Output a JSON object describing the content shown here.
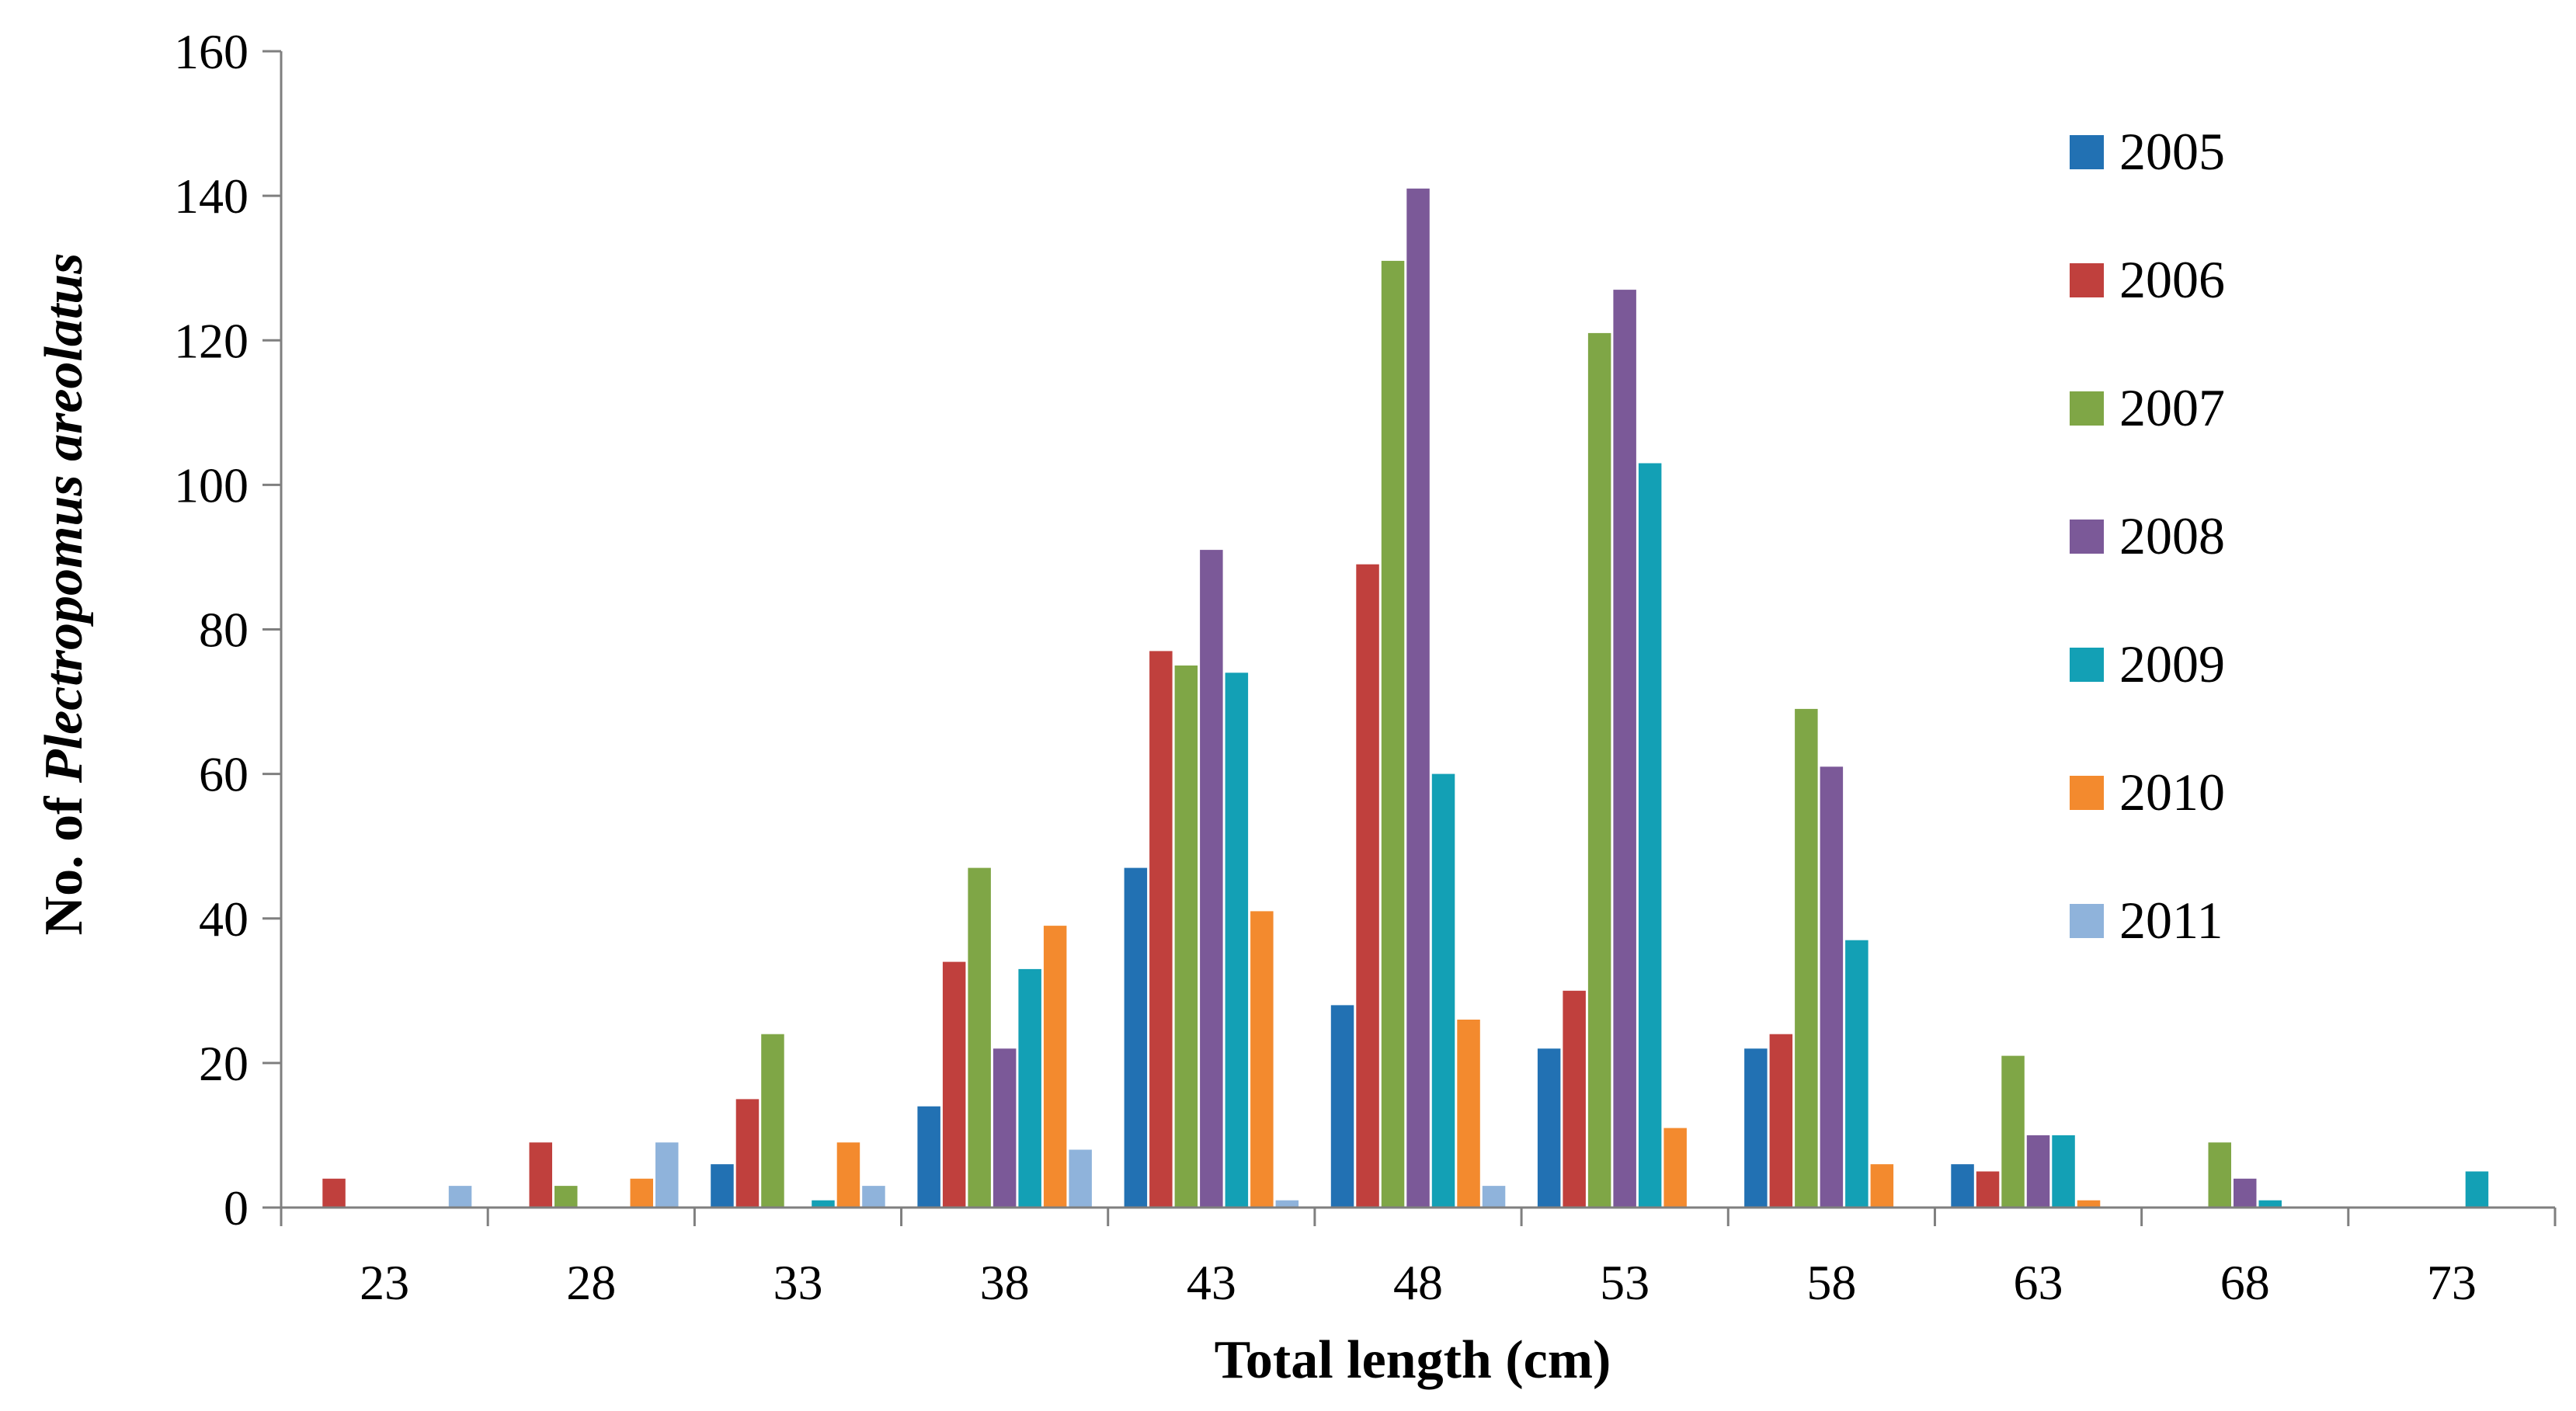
{
  "chart_data": {
    "type": "bar",
    "categories": [
      "23",
      "28",
      "33",
      "38",
      "43",
      "48",
      "53",
      "58",
      "63",
      "68",
      "73"
    ],
    "series": [
      {
        "name": "2005",
        "color": "#2271B3",
        "values": [
          0,
          0,
          6,
          14,
          47,
          28,
          22,
          22,
          6,
          0,
          0
        ]
      },
      {
        "name": "2006",
        "color": "#C0403D",
        "values": [
          4,
          9,
          15,
          34,
          77,
          89,
          30,
          24,
          5,
          0,
          0
        ]
      },
      {
        "name": "2007",
        "color": "#7FA646",
        "values": [
          0,
          3,
          24,
          47,
          75,
          131,
          121,
          69,
          21,
          9,
          0
        ]
      },
      {
        "name": "2008",
        "color": "#7B5998",
        "values": [
          0,
          0,
          0,
          22,
          91,
          141,
          127,
          61,
          10,
          4,
          0
        ]
      },
      {
        "name": "2009",
        "color": "#13A0B5",
        "values": [
          0,
          0,
          1,
          33,
          74,
          60,
          103,
          37,
          10,
          1,
          5
        ]
      },
      {
        "name": "2010",
        "color": "#F38A2E",
        "values": [
          0,
          4,
          9,
          39,
          41,
          26,
          11,
          6,
          1,
          0,
          0
        ]
      },
      {
        "name": "2011",
        "color": "#8FB3DB",
        "values": [
          3,
          9,
          3,
          8,
          1,
          3,
          0,
          0,
          0,
          0,
          0
        ]
      }
    ],
    "xlabel": "Total length (cm)",
    "ylabel_prefix": "No. of ",
    "ylabel_species": "Plectropomus areolatus",
    "ylim": [
      0,
      160
    ],
    "yticks": [
      "0",
      "20",
      "40",
      "60",
      "80",
      "100",
      "120",
      "140",
      "160"
    ],
    "grid": false,
    "legend_position": "right"
  }
}
